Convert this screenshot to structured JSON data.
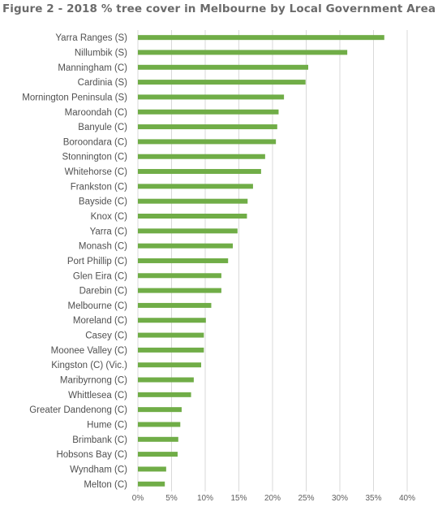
{
  "chart_data": {
    "type": "bar",
    "orientation": "horizontal",
    "title": "Figure 2 - 2018 % tree cover in Melbourne by Local Government Area",
    "xlabel": "",
    "ylabel": "",
    "xlim": [
      0,
      40
    ],
    "x_ticks": [
      "0%",
      "5%",
      "10%",
      "15%",
      "20%",
      "25%",
      "30%",
      "35%",
      "40%"
    ],
    "x_tick_values": [
      0,
      5,
      10,
      15,
      20,
      25,
      30,
      35,
      40
    ],
    "grid": true,
    "legend": "none",
    "bar_color": "#70ad47",
    "categories": [
      "Yarra Ranges (S)",
      "Nillumbik (S)",
      "Manningham (C)",
      "Cardinia (S)",
      "Mornington Peninsula (S)",
      "Maroondah (C)",
      "Banyule (C)",
      "Boroondara (C)",
      "Stonnington (C)",
      "Whitehorse (C)",
      "Frankston (C)",
      "Bayside (C)",
      "Knox (C)",
      "Yarra (C)",
      "Monash (C)",
      "Port Phillip (C)",
      "Glen Eira (C)",
      "Darebin (C)",
      "Melbourne (C)",
      "Moreland (C)",
      "Casey (C)",
      "Moonee Valley (C)",
      "Kingston (C) (Vic.)",
      "Maribyrnong (C)",
      "Whittlesea (C)",
      "Greater Dandenong (C)",
      "Hume (C)",
      "Brimbank (C)",
      "Hobsons Bay (C)",
      "Wyndham (C)",
      "Melton (C)"
    ],
    "values": [
      36.6,
      31.1,
      25.3,
      24.9,
      21.7,
      20.9,
      20.7,
      20.5,
      18.9,
      18.3,
      17.1,
      16.3,
      16.2,
      14.8,
      14.1,
      13.4,
      12.4,
      12.4,
      10.9,
      10.1,
      9.8,
      9.8,
      9.4,
      8.3,
      7.9,
      6.5,
      6.3,
      6.0,
      5.9,
      4.2,
      4.0
    ]
  }
}
